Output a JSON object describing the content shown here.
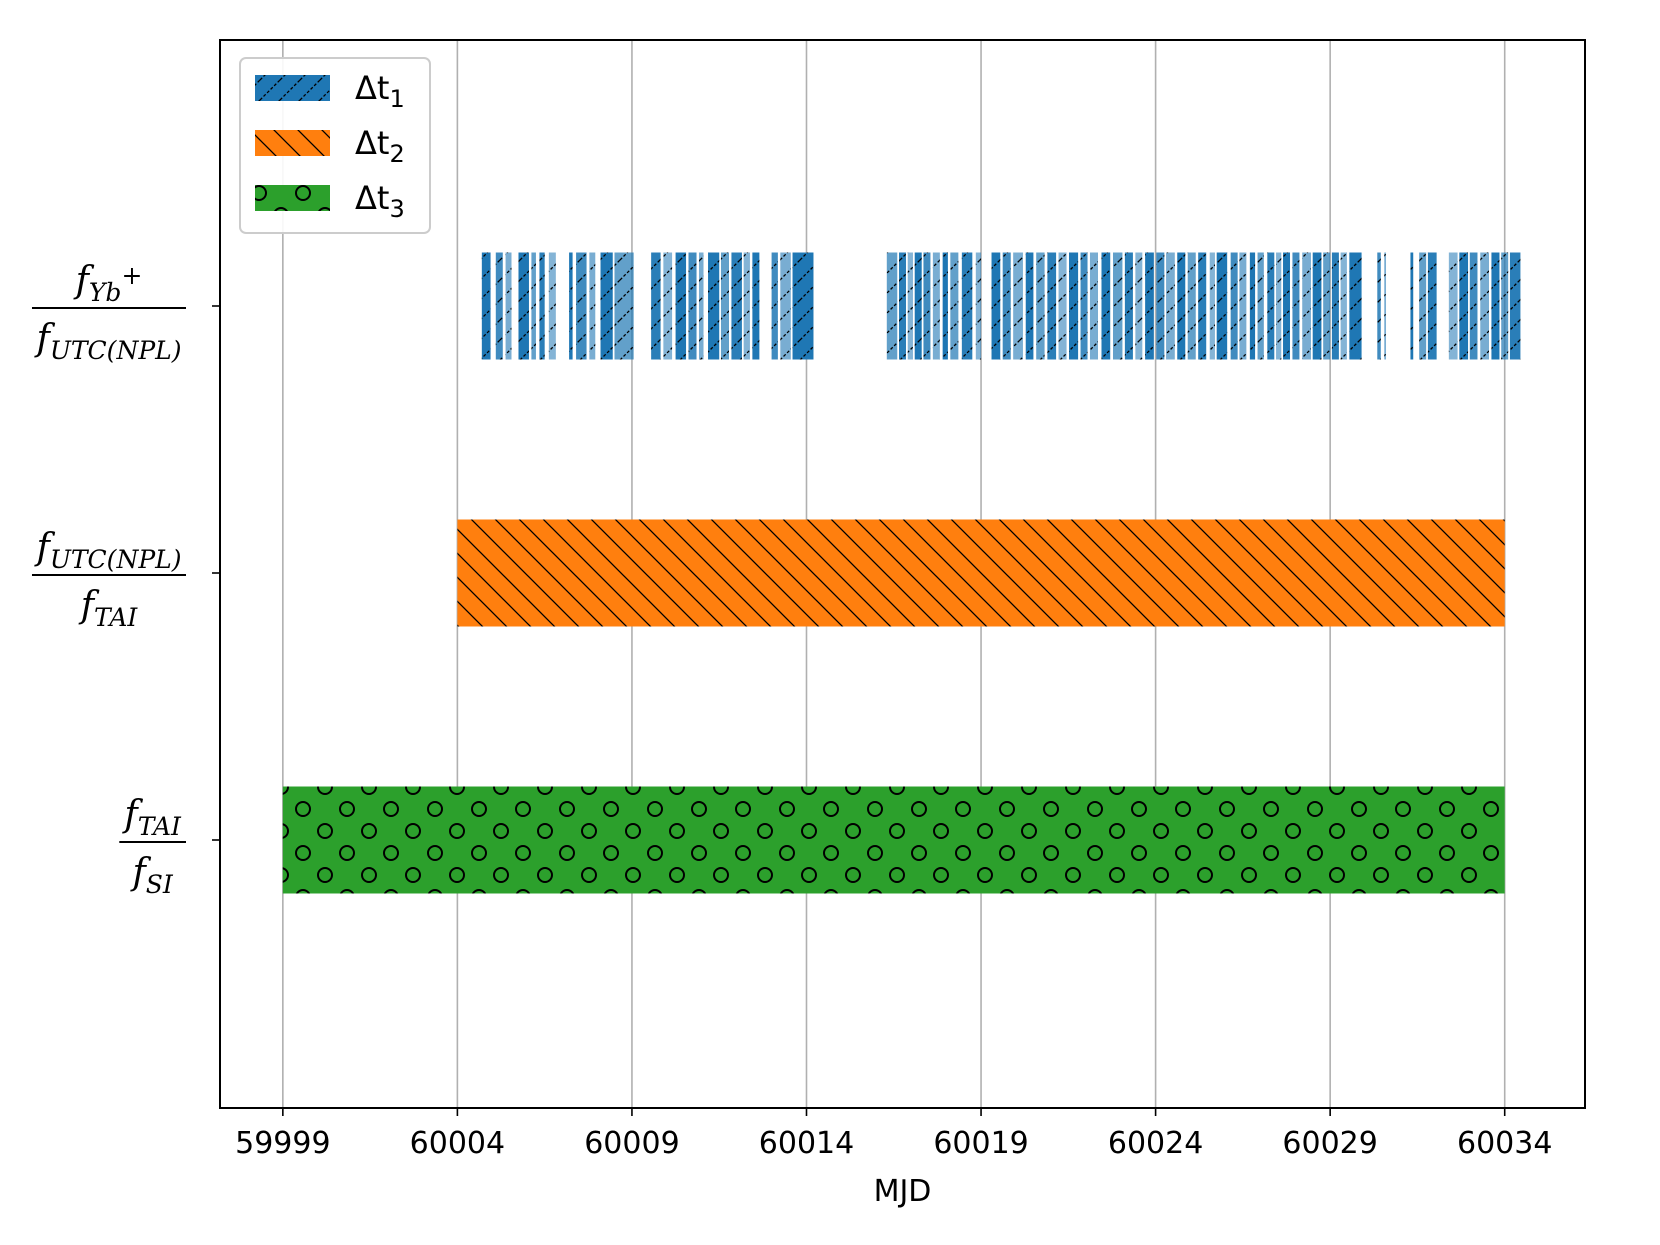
{
  "chart_data": {
    "type": "bar",
    "orientation": "horizontal",
    "title": "",
    "xlabel": "MJD",
    "ylabel": "",
    "xlim": [
      59997.2,
      60036.3
    ],
    "xticks": [
      59999,
      60004,
      60009,
      60014,
      60019,
      60024,
      60029,
      60034
    ],
    "grid": "x-major",
    "legend_position": "top-left",
    "categories": [
      {
        "id": "yb",
        "num": "f",
        "num_sub": "Yb",
        "num_sup": "+",
        "den": "f",
        "den_sub": "UTC(NPL)"
      },
      {
        "id": "utc",
        "num": "f",
        "num_sub": "UTC(NPL)",
        "num_sup": "",
        "den": "f",
        "den_sub": "TAI"
      },
      {
        "id": "tai",
        "num": "f",
        "num_sub": "TAI",
        "num_sup": "",
        "den": "f",
        "den_sub": "SI"
      }
    ],
    "series": [
      {
        "name": "Δt1",
        "name_base": "Δt",
        "name_sub": "1",
        "color": "#1f77b4",
        "hatch": "forward-diagonal",
        "row": "yb",
        "intervals": [
          [
            60004.7,
            60004.95
          ],
          [
            60005.1,
            60005.3
          ],
          [
            60005.38,
            60005.55
          ],
          [
            60005.75,
            60006.05
          ],
          [
            60006.12,
            60006.25
          ],
          [
            60006.35,
            60006.5
          ],
          [
            60006.62,
            60006.82
          ],
          [
            60007.2,
            60007.3
          ],
          [
            60007.4,
            60007.7
          ],
          [
            60007.78,
            60007.95
          ],
          [
            60008.1,
            60008.45
          ],
          [
            60008.5,
            60009.05
          ],
          [
            60009.55,
            60009.82
          ],
          [
            60009.9,
            60010.15
          ],
          [
            60010.25,
            60010.55
          ],
          [
            60010.62,
            60010.85
          ],
          [
            60010.92,
            60011.05
          ],
          [
            60011.18,
            60011.5
          ],
          [
            60011.55,
            60011.78
          ],
          [
            60011.85,
            60012.15
          ],
          [
            60012.2,
            60012.38
          ],
          [
            60012.45,
            60012.65
          ],
          [
            60013.0,
            60013.18
          ],
          [
            60013.25,
            60013.55
          ],
          [
            60013.6,
            60014.2
          ],
          [
            60016.3,
            60016.6
          ],
          [
            60016.65,
            60016.85
          ],
          [
            60016.9,
            60017.05
          ],
          [
            60017.1,
            60017.3
          ],
          [
            60017.35,
            60017.55
          ],
          [
            60017.62,
            60017.82
          ],
          [
            60017.9,
            60018.05
          ],
          [
            60018.12,
            60018.35
          ],
          [
            60018.45,
            60018.75
          ],
          [
            60018.85,
            60019.0
          ],
          [
            60019.3,
            60019.55
          ],
          [
            60019.62,
            60019.85
          ],
          [
            60019.92,
            60020.2
          ],
          [
            60020.28,
            60020.5
          ],
          [
            60020.58,
            60020.82
          ],
          [
            60020.9,
            60021.15
          ],
          [
            60021.22,
            60021.45
          ],
          [
            60021.52,
            60021.78
          ],
          [
            60021.85,
            60022.05
          ],
          [
            60022.12,
            60022.35
          ],
          [
            60022.45,
            60022.7
          ],
          [
            60022.78,
            60023.05
          ],
          [
            60023.12,
            60023.35
          ],
          [
            60023.42,
            60023.62
          ],
          [
            60023.7,
            60023.95
          ],
          [
            60024.02,
            60024.25
          ],
          [
            60024.3,
            60024.55
          ],
          [
            60024.62,
            60024.85
          ],
          [
            60024.92,
            60025.15
          ],
          [
            60025.22,
            60025.45
          ],
          [
            60025.55,
            60025.7
          ],
          [
            60025.75,
            60026.05
          ],
          [
            60026.15,
            60026.35
          ],
          [
            60026.4,
            60026.6
          ],
          [
            60026.7,
            60026.85
          ],
          [
            60026.92,
            60027.1
          ],
          [
            60027.2,
            60027.4
          ],
          [
            60027.45,
            60027.6
          ],
          [
            60027.65,
            60027.85
          ],
          [
            60027.92,
            60028.12
          ],
          [
            60028.2,
            60028.45
          ],
          [
            60028.5,
            60028.75
          ],
          [
            60028.8,
            60029.0
          ],
          [
            60029.05,
            60029.25
          ],
          [
            60029.3,
            60029.48
          ],
          [
            60029.55,
            60029.9
          ],
          [
            60030.35,
            60030.45
          ],
          [
            60030.55,
            60030.6
          ],
          [
            60031.3,
            60031.38
          ],
          [
            60031.55,
            60031.75
          ],
          [
            60031.8,
            60032.05
          ],
          [
            60032.4,
            60032.65
          ],
          [
            60032.7,
            60032.95
          ],
          [
            60033.0,
            60033.22
          ],
          [
            60033.3,
            60033.55
          ],
          [
            60033.62,
            60033.85
          ],
          [
            60033.9,
            60034.1
          ],
          [
            60034.15,
            60034.45
          ]
        ]
      },
      {
        "name": "Δt2",
        "name_base": "Δt",
        "name_sub": "2",
        "color": "#ff7f0e",
        "hatch": "back-diagonal",
        "row": "utc",
        "intervals": [
          [
            60004.0,
            60034.0
          ]
        ]
      },
      {
        "name": "Δt3",
        "name_base": "Δt",
        "name_sub": "3",
        "color": "#2ca02c",
        "hatch": "circles",
        "row": "tai",
        "intervals": [
          [
            59999.0,
            60034.0
          ]
        ]
      }
    ]
  }
}
